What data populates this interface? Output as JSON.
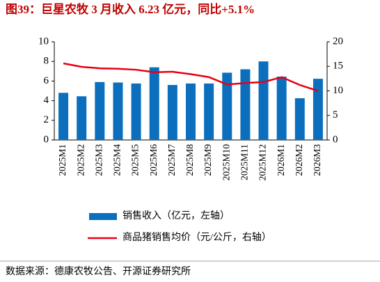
{
  "chart_data": {
    "type": "combo",
    "title": "图39：巨星农牧 3 月收入 6.23 亿元，同比+5.1%",
    "categories": [
      "2025M1",
      "2025M2",
      "2025M3",
      "2025M4",
      "2025M5",
      "2025M6",
      "2025M7",
      "2025M8",
      "2025M9",
      "2025M10",
      "2025M11",
      "2025M12",
      "2026M1",
      "2026M2",
      "2026M3"
    ],
    "series": [
      {
        "name": "销售收入（亿元，左轴）",
        "type": "bar",
        "color": "#0b6fbd",
        "values": [
          4.8,
          4.45,
          5.9,
          5.85,
          5.75,
          7.4,
          5.6,
          5.75,
          5.75,
          6.85,
          7.2,
          8.0,
          6.45,
          4.25,
          6.23
        ]
      },
      {
        "name": "商品猪销售均价（元/公斤，右轴）",
        "type": "line",
        "axis": "y2",
        "color": "#e60012",
        "values": [
          15.6,
          14.9,
          14.6,
          14.5,
          14.3,
          13.8,
          13.9,
          13.4,
          12.8,
          11.3,
          11.6,
          11.8,
          12.8,
          11.2,
          10.0
        ]
      }
    ],
    "ylim": [
      0,
      10
    ],
    "yticks": [
      0,
      2,
      4,
      6,
      8,
      10
    ],
    "y2lim": [
      0,
      20
    ],
    "y2ticks": [
      0,
      5,
      10,
      15,
      20
    ],
    "source": "数据来源：德康农牧公告、开源证券研究所"
  }
}
